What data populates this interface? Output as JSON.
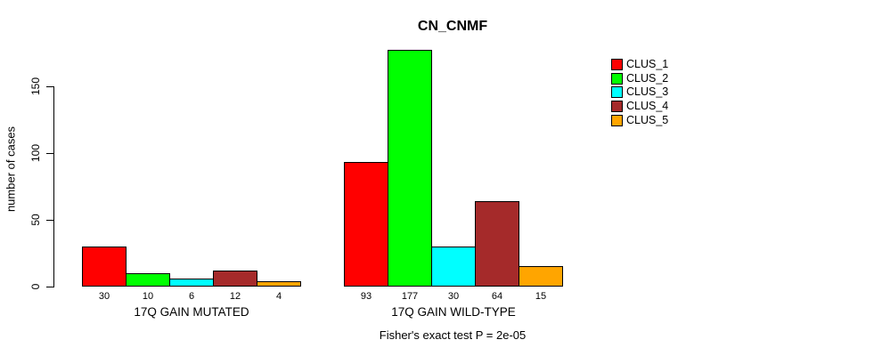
{
  "chart_data": {
    "type": "bar",
    "title": "CN_CNMF",
    "ylabel": "number of cases",
    "xlabel": "",
    "footnote": "Fisher's exact test P = 2e-05",
    "categories": [
      "17Q GAIN MUTATED",
      "17Q GAIN WILD-TYPE"
    ],
    "series": [
      {
        "name": "CLUS_1",
        "color": "#FF0000",
        "values": [
          30,
          93
        ]
      },
      {
        "name": "CLUS_2",
        "color": "#00FF00",
        "values": [
          10,
          177
        ]
      },
      {
        "name": "CLUS_3",
        "color": "#00FFFF",
        "values": [
          6,
          30
        ]
      },
      {
        "name": "CLUS_4",
        "color": "#A52A2A",
        "values": [
          12,
          64
        ]
      },
      {
        "name": "CLUS_5",
        "color": "#FFA500",
        "values": [
          4,
          15
        ]
      }
    ],
    "bar_value_labels": true,
    "yticks": [
      0,
      50,
      100,
      150
    ],
    "ylim": [
      0,
      180
    ],
    "grid": false,
    "legend_position": "right",
    "bar_outline_color": "#000000",
    "background_color": "#FFFFFF",
    "text_color": "#000000"
  }
}
